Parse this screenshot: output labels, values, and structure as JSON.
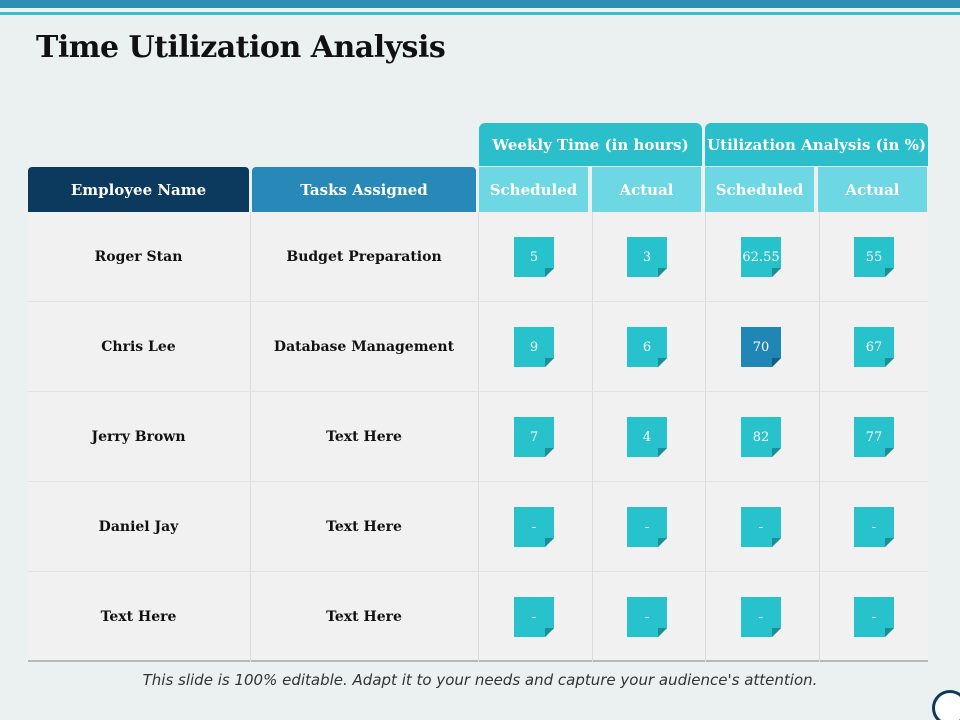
{
  "title": "Time Utilization Analysis",
  "headers": {
    "employee": "Employee Name",
    "tasks": "Tasks Assigned",
    "weekly_group": "Weekly Time (in hours)",
    "util_group": "Utilization Analysis (in %)",
    "scheduled": "Scheduled",
    "actual": "Actual"
  },
  "rows": [
    {
      "name": "Roger Stan",
      "task": "Budget Preparation",
      "w_sched": "5",
      "w_act": "3",
      "u_sched": "62.55",
      "u_act": "55"
    },
    {
      "name": "Chris Lee",
      "task": "Database Management",
      "w_sched": "9",
      "w_act": "6",
      "u_sched": "70",
      "u_act": "67"
    },
    {
      "name": "Jerry Brown",
      "task": "Text Here",
      "w_sched": "7",
      "w_act": "4",
      "u_sched": "82",
      "u_act": "77"
    },
    {
      "name": "Daniel Jay",
      "task": "Text Here",
      "w_sched": "-",
      "w_act": "-",
      "u_sched": "-",
      "u_act": "-"
    },
    {
      "name": "Text Here",
      "task": "Text Here",
      "w_sched": "-",
      "w_act": "-",
      "u_sched": "-",
      "u_act": "-"
    }
  ],
  "footer": "This slide is 100% editable. Adapt it to your needs and capture your audience's attention.",
  "colors": {
    "navy": "#0c3a5e",
    "blue": "#2889b9",
    "teal": "#2bbfcb",
    "light_teal": "#6dd8e3",
    "note": "#27c2cc",
    "note_highlight": "#1f86b5"
  }
}
